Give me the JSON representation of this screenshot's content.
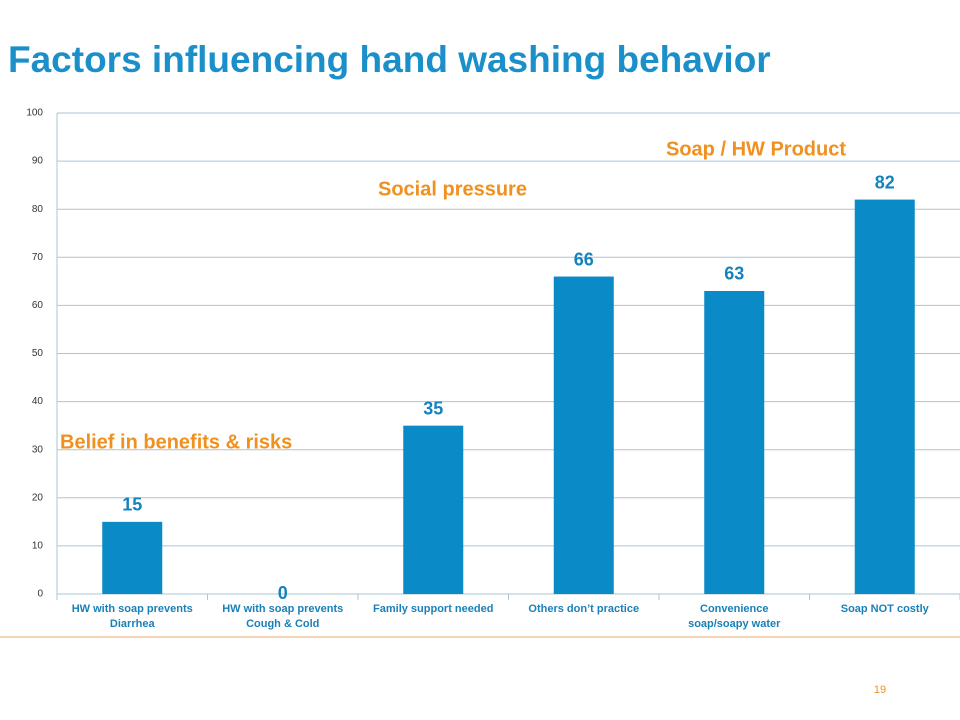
{
  "chart_data": {
    "type": "bar",
    "title": "Factors influencing hand washing behavior",
    "categories": [
      "HW with soap prevents\nDiarrhea",
      "HW with soap prevents\nCough & Cold",
      "Family support needed",
      "Others don’t practice",
      "Convenience\nsoap/soapy water",
      "Soap NOT costly"
    ],
    "values": [
      15,
      0,
      35,
      66,
      63,
      82
    ],
    "color": "#0a8ac6",
    "ylim": [
      0,
      100
    ],
    "yticks": [
      0,
      10,
      20,
      30,
      40,
      50,
      60,
      70,
      80,
      90,
      100
    ],
    "grid": true,
    "annotations": [
      "Belief in benefits & risks",
      "Social pressure",
      "Soap / HW Product"
    ],
    "page_number": "19"
  }
}
